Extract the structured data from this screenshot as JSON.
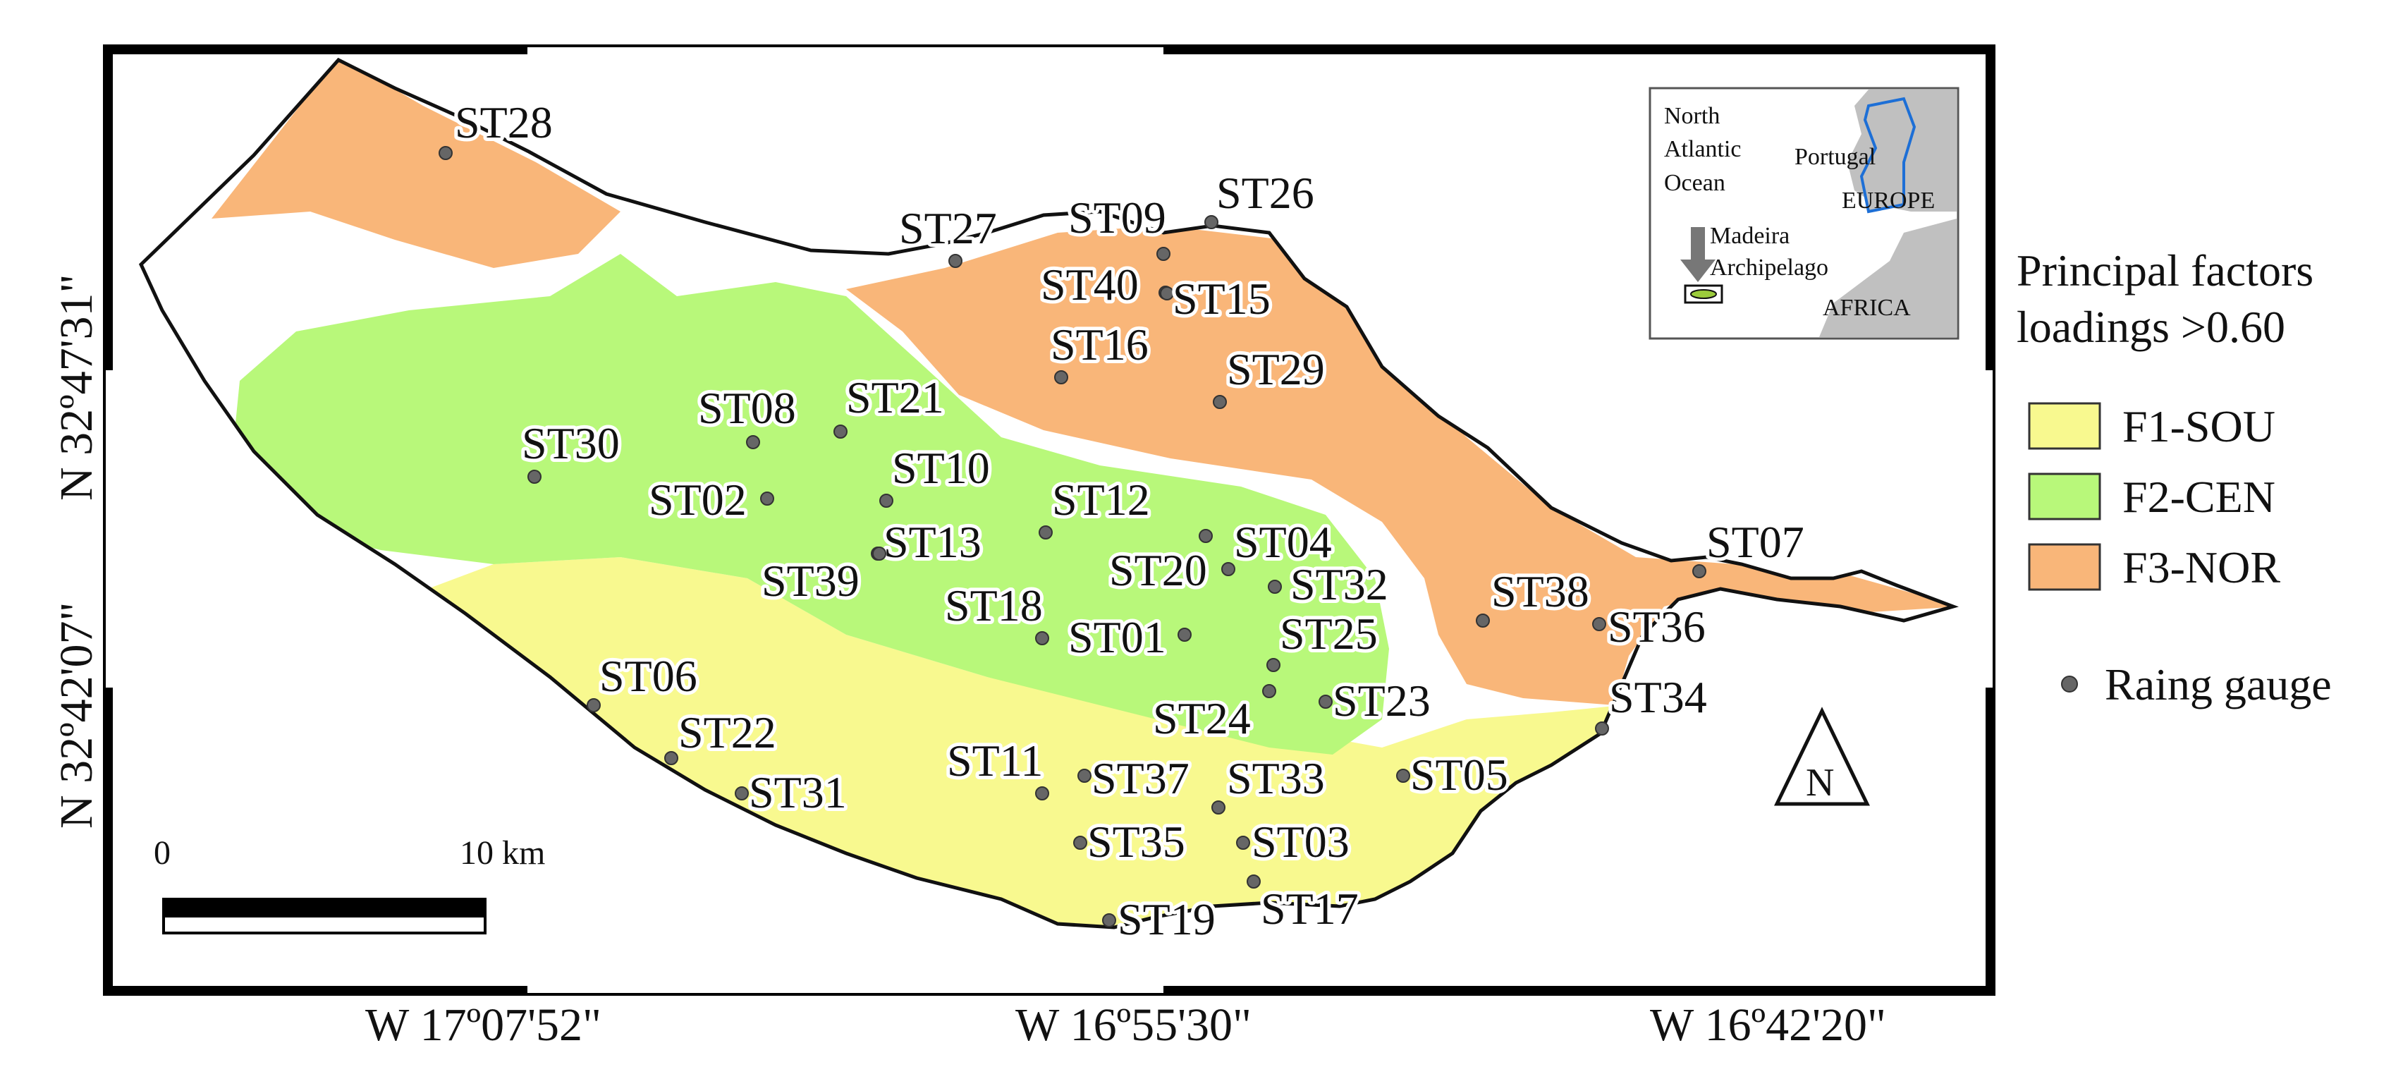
{
  "colors": {
    "sou": "#f8f98f",
    "cen": "#b8f87a",
    "nor": "#f9b679",
    "gauge": "#666666",
    "land_gray": "#c0c0c0",
    "portugal": "#1d6fd6"
  },
  "coords": {
    "lat_top": "N 32º47'31\"",
    "lat_bottom": "N 32º42'07\"",
    "lon_left": "W 17º07'52\"",
    "lon_mid": "W 16º55'30\"",
    "lon_right": "W 16º42'20\""
  },
  "inset": {
    "ocean": [
      "North",
      "Atlantic",
      "Ocean"
    ],
    "portugal": "Portugal",
    "europe": "EUROPE",
    "africa": "AFRICA",
    "madeira": [
      "Madeira",
      "Archipelago"
    ]
  },
  "scale": {
    "zero": "0",
    "ten": "10 km"
  },
  "north": "N",
  "legend": {
    "title_line1": "Principal factors",
    "title_line2": "loadings >0.60",
    "items": [
      {
        "label": "F1-SOU",
        "color": "#f8f98f"
      },
      {
        "label": "F2-CEN",
        "color": "#b8f87a"
      },
      {
        "label": "F3-NOR",
        "color": "#f9b679"
      }
    ],
    "gauge": "Raing gauge"
  },
  "stations": [
    {
      "id": "ST28"
    },
    {
      "id": "ST27"
    },
    {
      "id": "ST09"
    },
    {
      "id": "ST26"
    },
    {
      "id": "ST40"
    },
    {
      "id": "ST15"
    },
    {
      "id": "ST16"
    },
    {
      "id": "ST29"
    },
    {
      "id": "ST30"
    },
    {
      "id": "ST08"
    },
    {
      "id": "ST21"
    },
    {
      "id": "ST10"
    },
    {
      "id": "ST02"
    },
    {
      "id": "ST12"
    },
    {
      "id": "ST13"
    },
    {
      "id": "ST04"
    },
    {
      "id": "ST39"
    },
    {
      "id": "ST20"
    },
    {
      "id": "ST32"
    },
    {
      "id": "ST38"
    },
    {
      "id": "ST07"
    },
    {
      "id": "ST18"
    },
    {
      "id": "ST01"
    },
    {
      "id": "ST25"
    },
    {
      "id": "ST36"
    },
    {
      "id": "ST06"
    },
    {
      "id": "ST23"
    },
    {
      "id": "ST34"
    },
    {
      "id": "ST24"
    },
    {
      "id": "ST22"
    },
    {
      "id": "ST11"
    },
    {
      "id": "ST37"
    },
    {
      "id": "ST33"
    },
    {
      "id": "ST05"
    },
    {
      "id": "ST31"
    },
    {
      "id": "ST35"
    },
    {
      "id": "ST03"
    },
    {
      "id": "ST19"
    },
    {
      "id": "ST17"
    }
  ]
}
